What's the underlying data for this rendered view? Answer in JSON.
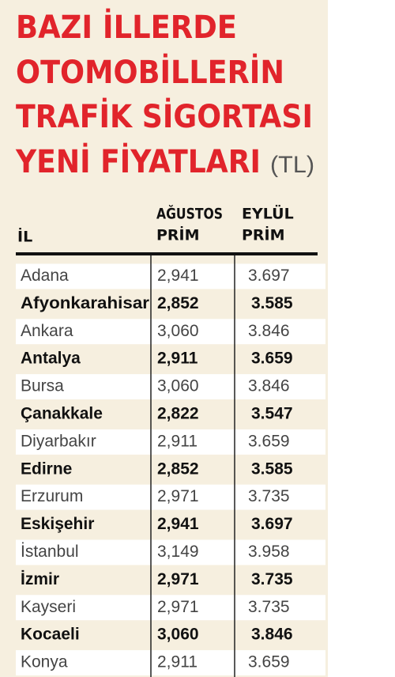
{
  "title": {
    "lines": [
      "BAZI İLLERDE",
      "OTOMOBİLLERİN",
      "TRAFİK SİGORTASI",
      "YENİ FİYATLARI"
    ],
    "unit": "(TL)"
  },
  "table": {
    "header": {
      "province": "İL",
      "august": [
        "AĞUSTOS",
        "PRİM"
      ],
      "september": [
        "EYLÜL",
        "PRİM"
      ]
    },
    "rows": [
      [
        "Adana",
        "2,941",
        "3.697"
      ],
      [
        "Afyonkarahisar",
        "2,852",
        "3.585"
      ],
      [
        "Ankara",
        "3,060",
        "3.846"
      ],
      [
        "Antalya",
        "2,911",
        "3.659"
      ],
      [
        "Bursa",
        "3,060",
        "3.846"
      ],
      [
        "Çanakkale",
        "2,822",
        "3.547"
      ],
      [
        "Diyarbakır",
        "2,911",
        "3.659"
      ],
      [
        "Edirne",
        "2,852",
        "3.585"
      ],
      [
        "Erzurum",
        "2,971",
        "3.735"
      ],
      [
        "Eskişehir",
        "2,941",
        "3.697"
      ],
      [
        "İstanbul",
        "3,149",
        "3.958"
      ],
      [
        "İzmir",
        "2,971",
        "3.735"
      ],
      [
        "Kayseri",
        "2,971",
        "3.735"
      ],
      [
        "Kocaeli",
        "3,060",
        "3.846"
      ],
      [
        "Konya",
        "2,911",
        "3.659"
      ]
    ]
  }
}
